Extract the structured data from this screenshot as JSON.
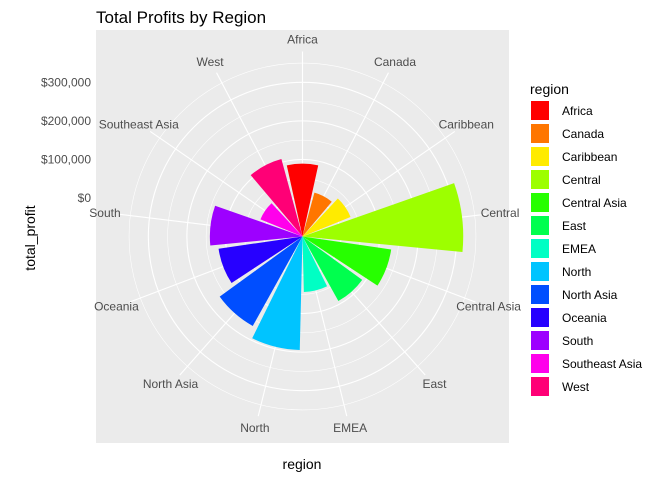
{
  "chart_data": {
    "type": "bar",
    "coord": "polar",
    "title": "Total Profits by Region",
    "xlabel": "region",
    "ylabel": "total_profit",
    "categories": [
      "Africa",
      "Canada",
      "Caribbean",
      "Central",
      "Central Asia",
      "East",
      "EMEA",
      "North",
      "North Asia",
      "Oceania",
      "South",
      "Southeast Asia",
      "West"
    ],
    "values": [
      88872,
      17817,
      34572,
      316971,
      132480,
      91523,
      43898,
      194598,
      165579,
      120089,
      140355,
      17853,
      108418
    ],
    "colors": [
      "#FF0000",
      "#FF7600",
      "#FFEB00",
      "#9DFF00",
      "#27FF00",
      "#00FF4E",
      "#00FFC4",
      "#00C4FF",
      "#004EFF",
      "#2700FF",
      "#9D00FF",
      "#FF00EB",
      "#FF0076"
    ],
    "y_ticks": [
      0,
      100000,
      200000,
      300000
    ],
    "y_tick_labels": [
      "$0",
      "$100,000",
      "$200,000",
      "$300,000"
    ],
    "ylim": [
      -100000,
      380000
    ],
    "grid": true,
    "legend": {
      "title": "region",
      "position": "right"
    }
  }
}
